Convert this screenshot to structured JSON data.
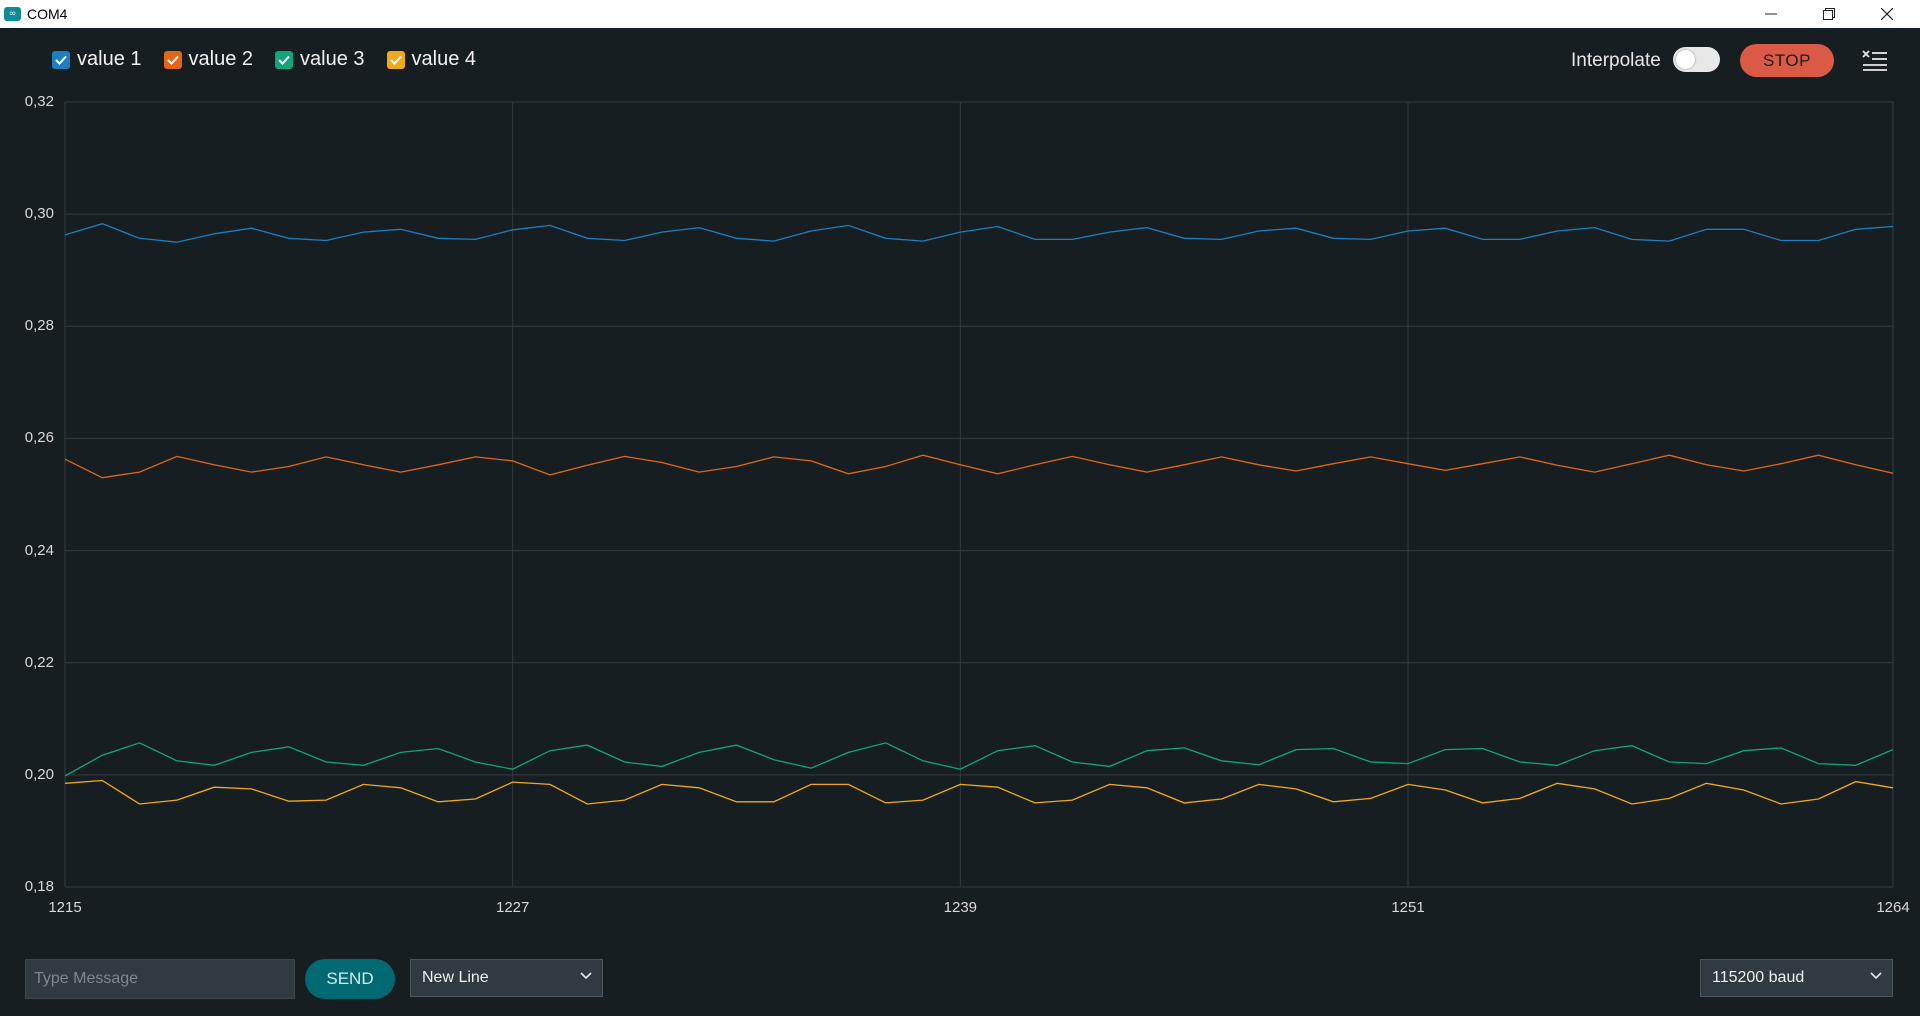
{
  "window": {
    "title": "COM4"
  },
  "legend": [
    {
      "label": "value 1",
      "color": "#1b7fc0",
      "checked": true
    },
    {
      "label": "value 2",
      "color": "#e0661a",
      "checked": true
    },
    {
      "label": "value 3",
      "color": "#12a47a",
      "checked": true
    },
    {
      "label": "value 4",
      "color": "#f0aa16",
      "checked": true
    }
  ],
  "toolbar": {
    "interpolate_label": "Interpolate",
    "interpolate_on": false,
    "stop_label": "STOP"
  },
  "bottom": {
    "message_placeholder": "Type Message",
    "send_label": "SEND",
    "line_ending": "New Line",
    "baud": "115200 baud"
  },
  "chart_data": {
    "type": "line",
    "x_ticks": [
      "1215",
      "1227",
      "1239",
      "1251",
      "1264"
    ],
    "y_ticks": [
      "0,32",
      "0,30",
      "0,28",
      "0,26",
      "0,24",
      "0,22",
      "0,20",
      "0,18"
    ],
    "xlim": [
      1215,
      1264
    ],
    "ylim": [
      0.18,
      0.32
    ],
    "grid": true,
    "interpolate": false,
    "x": [
      1215,
      1216,
      1217,
      1218,
      1219,
      1220,
      1221,
      1222,
      1223,
      1224,
      1225,
      1226,
      1227,
      1228,
      1229,
      1230,
      1231,
      1232,
      1233,
      1234,
      1235,
      1236,
      1237,
      1238,
      1239,
      1240,
      1241,
      1242,
      1243,
      1244,
      1245,
      1246,
      1247,
      1248,
      1249,
      1250,
      1251,
      1252,
      1253,
      1254,
      1255,
      1256,
      1257,
      1258,
      1259,
      1260,
      1261,
      1262,
      1263,
      1264
    ],
    "series": [
      {
        "name": "value 1",
        "color": "#1b7fc0",
        "values": [
          0.2963,
          0.2983,
          0.2957,
          0.295,
          0.2965,
          0.2975,
          0.2957,
          0.2953,
          0.2968,
          0.2973,
          0.2957,
          0.2955,
          0.2972,
          0.298,
          0.2957,
          0.2953,
          0.2968,
          0.2976,
          0.2957,
          0.2952,
          0.297,
          0.298,
          0.2957,
          0.2952,
          0.2968,
          0.2978,
          0.2955,
          0.2955,
          0.2968,
          0.2976,
          0.2957,
          0.2955,
          0.297,
          0.2975,
          0.2957,
          0.2955,
          0.297,
          0.2975,
          0.2955,
          0.2955,
          0.297,
          0.2976,
          0.2955,
          0.2952,
          0.2973,
          0.2973,
          0.2953,
          0.2953,
          0.2973,
          0.2978
        ]
      },
      {
        "name": "value 2",
        "color": "#e0661a",
        "values": [
          0.2563,
          0.253,
          0.254,
          0.2568,
          0.2553,
          0.254,
          0.255,
          0.2567,
          0.2553,
          0.254,
          0.2553,
          0.2567,
          0.256,
          0.2535,
          0.2552,
          0.2568,
          0.2557,
          0.254,
          0.255,
          0.2567,
          0.256,
          0.2537,
          0.255,
          0.257,
          0.2553,
          0.2537,
          0.2553,
          0.2568,
          0.2553,
          0.254,
          0.2553,
          0.2567,
          0.2553,
          0.2542,
          0.2555,
          0.2567,
          0.2555,
          0.2543,
          0.2555,
          0.2567,
          0.2552,
          0.254,
          0.2555,
          0.257,
          0.2553,
          0.2542,
          0.2555,
          0.257,
          0.2553,
          0.2538
        ]
      },
      {
        "name": "value 3",
        "color": "#12a47a",
        "values": [
          0.1998,
          0.2035,
          0.2057,
          0.2025,
          0.2017,
          0.204,
          0.205,
          0.2023,
          0.2017,
          0.204,
          0.2047,
          0.2023,
          0.201,
          0.2043,
          0.2053,
          0.2023,
          0.2015,
          0.204,
          0.2053,
          0.2027,
          0.2012,
          0.204,
          0.2057,
          0.2025,
          0.201,
          0.2043,
          0.2052,
          0.2023,
          0.2015,
          0.2043,
          0.2048,
          0.2025,
          0.2018,
          0.2045,
          0.2047,
          0.2023,
          0.202,
          0.2045,
          0.2047,
          0.2023,
          0.2017,
          0.2043,
          0.2052,
          0.2023,
          0.202,
          0.2043,
          0.2048,
          0.202,
          0.2017,
          0.2045
        ]
      },
      {
        "name": "value 4",
        "color": "#f0aa16",
        "values": [
          0.1985,
          0.199,
          0.1948,
          0.1955,
          0.1978,
          0.1975,
          0.1953,
          0.1955,
          0.1983,
          0.1977,
          0.1952,
          0.1957,
          0.1987,
          0.1983,
          0.1948,
          0.1955,
          0.1983,
          0.1977,
          0.1952,
          0.1952,
          0.1983,
          0.1983,
          0.195,
          0.1955,
          0.1983,
          0.1978,
          0.195,
          0.1955,
          0.1983,
          0.1977,
          0.195,
          0.1957,
          0.1983,
          0.1975,
          0.1952,
          0.1958,
          0.1983,
          0.1973,
          0.195,
          0.1958,
          0.1985,
          0.1975,
          0.1948,
          0.1958,
          0.1985,
          0.1973,
          0.1948,
          0.1957,
          0.1988,
          0.1977
        ]
      }
    ]
  }
}
